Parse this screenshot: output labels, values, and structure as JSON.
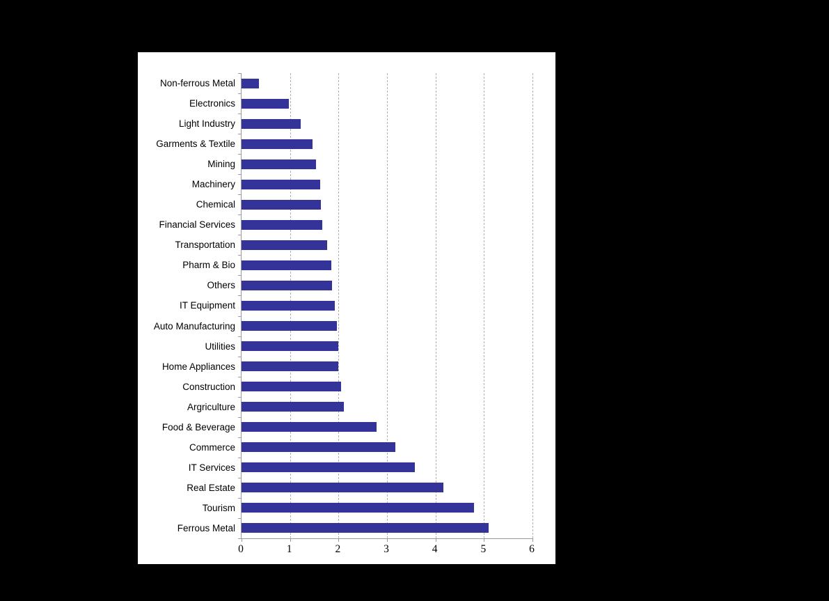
{
  "window": {
    "background_color": "#000000"
  },
  "panel": {
    "background_color": "#ffffff"
  },
  "chart_data": {
    "type": "bar",
    "orientation": "horizontal",
    "title": "",
    "xlabel": "",
    "ylabel": "",
    "categories": [
      "Non-ferrous Metal",
      "Electronics",
      "Light Industry",
      "Garments & Textile",
      "Mining",
      "Machinery",
      "Chemical",
      "Financial Services",
      "Transportation",
      "Pharm & Bio",
      "Others",
      "IT Equipment",
      "Auto Manufacturing",
      "Utilities",
      "Home Appliances",
      "Construction",
      "Argriculture",
      "Food & Beverage",
      "Commerce",
      "IT Services",
      "Real Estate",
      "Tourism",
      "Ferrous Metal"
    ],
    "values": [
      0.36,
      0.97,
      1.22,
      1.46,
      1.53,
      1.62,
      1.63,
      1.66,
      1.76,
      1.85,
      1.87,
      1.92,
      1.97,
      2.0,
      2.0,
      2.05,
      2.11,
      2.78,
      3.17,
      3.58,
      4.16,
      4.8,
      5.1
    ],
    "xlim": [
      0,
      6
    ],
    "x_ticks": [
      "0",
      "1",
      "2",
      "3",
      "4",
      "5",
      "6"
    ],
    "grid": "vertical-dashed",
    "legend": "none",
    "bar_color": "#333399",
    "grid_color": "#b0b0b0",
    "axis_color": "#999999",
    "label_color": "#000000"
  }
}
